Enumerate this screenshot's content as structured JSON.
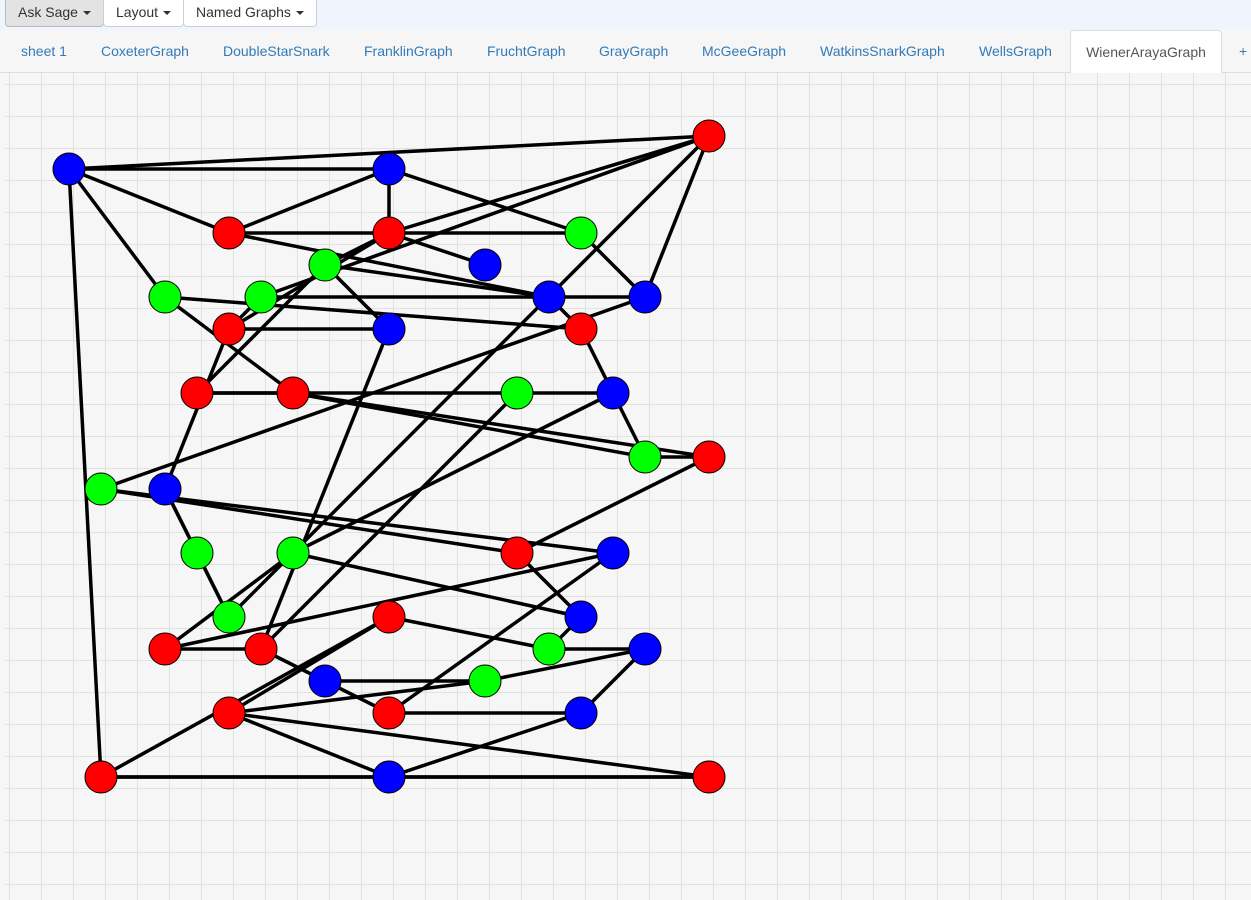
{
  "toolbar": {
    "ask_sage": "Ask Sage",
    "layout": "Layout",
    "named_graphs": "Named Graphs"
  },
  "tabs": [
    {
      "label": "sheet 1"
    },
    {
      "label": "CoxeterGraph"
    },
    {
      "label": "DoubleStarSnark"
    },
    {
      "label": "FranklinGraph"
    },
    {
      "label": "FruchtGraph"
    },
    {
      "label": "GrayGraph"
    },
    {
      "label": "McGeeGraph"
    },
    {
      "label": "WatkinsSnarkGraph"
    },
    {
      "label": "WellsGraph"
    },
    {
      "label": "WienerArayaGraph",
      "active": true
    },
    {
      "label": "+"
    }
  ],
  "node_colors": {
    "red": "#ff0000",
    "blue": "#0000ff",
    "green": "#00ff00"
  },
  "graph": {
    "name": "WienerArayaGraph",
    "nodes": [
      {
        "id": 0,
        "color": "blue"
      },
      {
        "id": 1,
        "color": "blue"
      },
      {
        "id": 2,
        "color": "red"
      },
      {
        "id": 3,
        "color": "red"
      },
      {
        "id": 4,
        "color": "red"
      },
      {
        "id": 5,
        "color": "green"
      },
      {
        "id": 6,
        "color": "green"
      },
      {
        "id": 7,
        "color": "blue"
      },
      {
        "id": 8,
        "color": "green"
      },
      {
        "id": 9,
        "color": "green"
      },
      {
        "id": 10,
        "color": "blue"
      },
      {
        "id": 11,
        "color": "blue"
      },
      {
        "id": 12,
        "color": "red"
      },
      {
        "id": 13,
        "color": "blue"
      },
      {
        "id": 14,
        "color": "red"
      },
      {
        "id": 15,
        "color": "red"
      },
      {
        "id": 16,
        "color": "red"
      },
      {
        "id": 17,
        "color": "green"
      },
      {
        "id": 18,
        "color": "blue"
      },
      {
        "id": 19,
        "color": "green"
      },
      {
        "id": 20,
        "color": "red"
      },
      {
        "id": 21,
        "color": "green"
      },
      {
        "id": 22,
        "color": "blue"
      },
      {
        "id": 23,
        "color": "green"
      },
      {
        "id": 24,
        "color": "green"
      },
      {
        "id": 25,
        "color": "red"
      },
      {
        "id": 26,
        "color": "blue"
      },
      {
        "id": 27,
        "color": "green"
      },
      {
        "id": 28,
        "color": "blue"
      },
      {
        "id": 29,
        "color": "red"
      },
      {
        "id": 30,
        "color": "red"
      },
      {
        "id": 31,
        "color": "green"
      },
      {
        "id": 32,
        "color": "blue"
      },
      {
        "id": 33,
        "color": "blue"
      },
      {
        "id": 34,
        "color": "green"
      },
      {
        "id": 35,
        "color": "red"
      },
      {
        "id": 36,
        "color": "red"
      },
      {
        "id": 37,
        "color": "red"
      },
      {
        "id": 38,
        "color": "blue"
      },
      {
        "id": 39,
        "color": "red"
      },
      {
        "id": 40,
        "color": "blue"
      },
      {
        "id": 41,
        "color": "red"
      }
    ],
    "edges": [
      [
        0,
        1
      ],
      [
        0,
        2
      ],
      [
        0,
        39
      ],
      [
        0,
        3
      ],
      [
        0,
        8
      ],
      [
        2,
        4
      ],
      [
        2,
        9
      ],
      [
        2,
        11
      ],
      [
        2,
        27
      ],
      [
        4,
        7
      ],
      [
        4,
        1
      ],
      [
        4,
        12
      ],
      [
        1,
        3
      ],
      [
        1,
        5
      ],
      [
        3,
        10
      ],
      [
        3,
        5
      ],
      [
        10,
        6
      ],
      [
        6,
        4
      ],
      [
        6,
        13
      ],
      [
        6,
        15
      ],
      [
        5,
        11
      ],
      [
        9,
        11
      ],
      [
        9,
        12
      ],
      [
        8,
        14
      ],
      [
        8,
        16
      ],
      [
        14,
        10
      ],
      [
        13,
        12
      ],
      [
        13,
        30
      ],
      [
        15,
        16
      ],
      [
        15,
        17
      ],
      [
        17,
        18
      ],
      [
        19,
        14
      ],
      [
        16,
        19
      ],
      [
        16,
        20
      ],
      [
        11,
        21
      ],
      [
        12,
        22
      ],
      [
        22,
        23
      ],
      [
        22,
        27
      ],
      [
        18,
        24
      ],
      [
        17,
        30
      ],
      [
        19,
        20
      ],
      [
        20,
        25
      ],
      [
        21,
        25
      ],
      [
        21,
        26
      ],
      [
        23,
        27
      ],
      [
        26,
        29
      ],
      [
        26,
        37
      ],
      [
        24,
        28
      ],
      [
        24,
        29
      ],
      [
        28,
        25
      ],
      [
        28,
        31
      ],
      [
        29,
        30
      ],
      [
        31,
        32
      ],
      [
        31,
        35
      ],
      [
        32,
        34
      ],
      [
        32,
        38
      ],
      [
        34,
        33
      ],
      [
        34,
        36
      ],
      [
        33,
        30
      ],
      [
        33,
        37
      ],
      [
        35,
        36
      ],
      [
        35,
        39
      ],
      [
        36,
        40
      ],
      [
        36,
        41
      ],
      [
        37,
        38
      ],
      [
        38,
        40
      ],
      [
        39,
        40
      ],
      [
        40,
        41
      ],
      [
        39,
        41
      ]
    ]
  }
}
